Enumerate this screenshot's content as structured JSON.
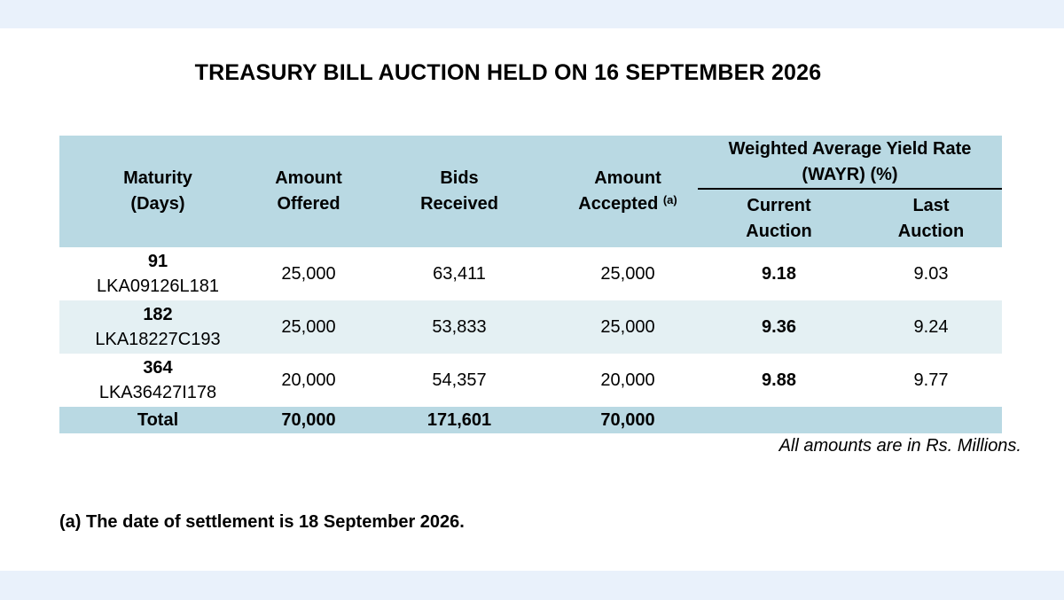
{
  "title": "TREASURY BILL AUCTION HELD ON 16 SEPTEMBER 2026",
  "headers": {
    "maturity": [
      "Maturity",
      "(Days)"
    ],
    "offered": [
      "Amount",
      "Offered"
    ],
    "bids": [
      "Bids",
      "Received"
    ],
    "accepted": [
      "Amount",
      "Accepted"
    ],
    "accepted_note": "(a)",
    "wayr_group": [
      "Weighted Average Yield Rate",
      "(WAYR) (%)"
    ],
    "current": [
      "Current",
      "Auction"
    ],
    "last": [
      "Last",
      "Auction"
    ]
  },
  "rows": [
    {
      "days": "91",
      "isin": "LKA09126L181",
      "offered": "25,000",
      "bids": "63,411",
      "accepted": "25,000",
      "current": "9.18",
      "last": "9.03"
    },
    {
      "days": "182",
      "isin": "LKA18227C193",
      "offered": "25,000",
      "bids": "53,833",
      "accepted": "25,000",
      "current": "9.36",
      "last": "9.24"
    },
    {
      "days": "364",
      "isin": "LKA36427I178",
      "offered": "20,000",
      "bids": "54,357",
      "accepted": "20,000",
      "current": "9.88",
      "last": "9.77"
    }
  ],
  "total": {
    "label": "Total",
    "offered": "70,000",
    "bids": "171,601",
    "accepted": "70,000"
  },
  "note": "All amounts are in Rs. Millions.",
  "footnote": "(a) The date of settlement is 18 September 2026."
}
